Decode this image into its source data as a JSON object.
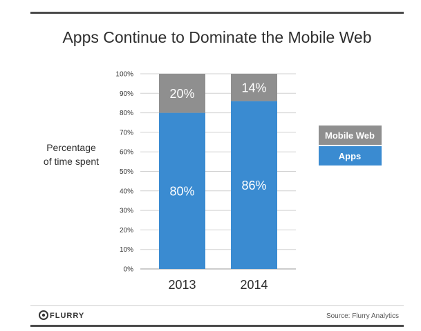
{
  "chart_data": {
    "type": "bar",
    "stacked": true,
    "title": "Apps Continue to Dominate the Mobile Web",
    "ylabel_lines": [
      "Percentage",
      "of time spent"
    ],
    "categories": [
      "2013",
      "2014"
    ],
    "series": [
      {
        "name": "Apps",
        "values": [
          80,
          86
        ],
        "labels": [
          "80%",
          "86%"
        ]
      },
      {
        "name": "Mobile Web",
        "values": [
          20,
          14
        ],
        "labels": [
          "20%",
          "14%"
        ]
      }
    ],
    "ylim": [
      0,
      100
    ],
    "yticks": [
      "0%",
      "10%",
      "20%",
      "30%",
      "40%",
      "50%",
      "60%",
      "70%",
      "80%",
      "90%",
      "100%"
    ],
    "legend_placement": "right",
    "grid": true
  },
  "colors": {
    "apps": "#3a8bd1",
    "mobile_web": "#8f8f8f",
    "rule": "#4a4a4a",
    "grid": "#d0d0d0"
  },
  "footer": {
    "logo": "FLURRY",
    "source": "Source: Flurry Analytics"
  }
}
